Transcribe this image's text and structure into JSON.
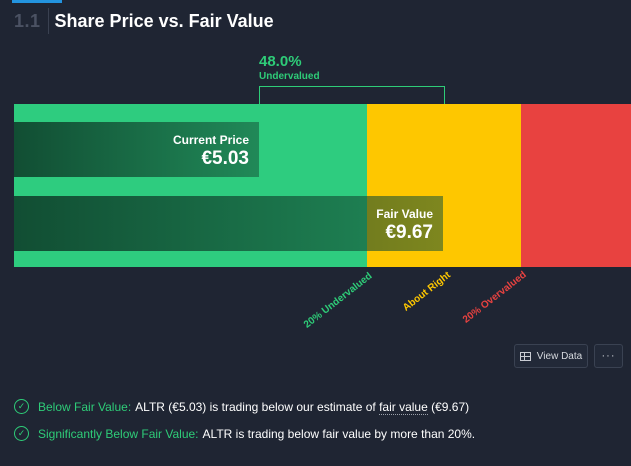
{
  "section": {
    "number": "1.1",
    "title": "Share Price vs. Fair Value"
  },
  "difference": {
    "percent": "48.0%",
    "label": "Undervalued"
  },
  "current_price": {
    "label": "Current Price",
    "value": "€5.03"
  },
  "fair_value": {
    "label": "Fair Value",
    "value": "€9.67"
  },
  "zones": {
    "undervalued": "20% Undervalued",
    "about_right": "About Right",
    "overvalued": "20% Overvalued"
  },
  "buttons": {
    "view_data": "View Data",
    "more": "···"
  },
  "checks": [
    {
      "title": "Below Fair Value:",
      "text_before": "ALTR (€5.03) is trading below our estimate of",
      "link": "fair value",
      "text_after": "(€9.67)"
    },
    {
      "title": "Significantly Below Fair Value:",
      "text": "ALTR is trading below fair value by more than 20%."
    }
  ],
  "colors": {
    "green": "#2ecc7f",
    "yellow": "#fec700",
    "red": "#e84240",
    "background": "#1f2533"
  },
  "icons": {
    "check": "check-circle-icon",
    "grid": "grid-icon",
    "more": "ellipsis-icon"
  }
}
